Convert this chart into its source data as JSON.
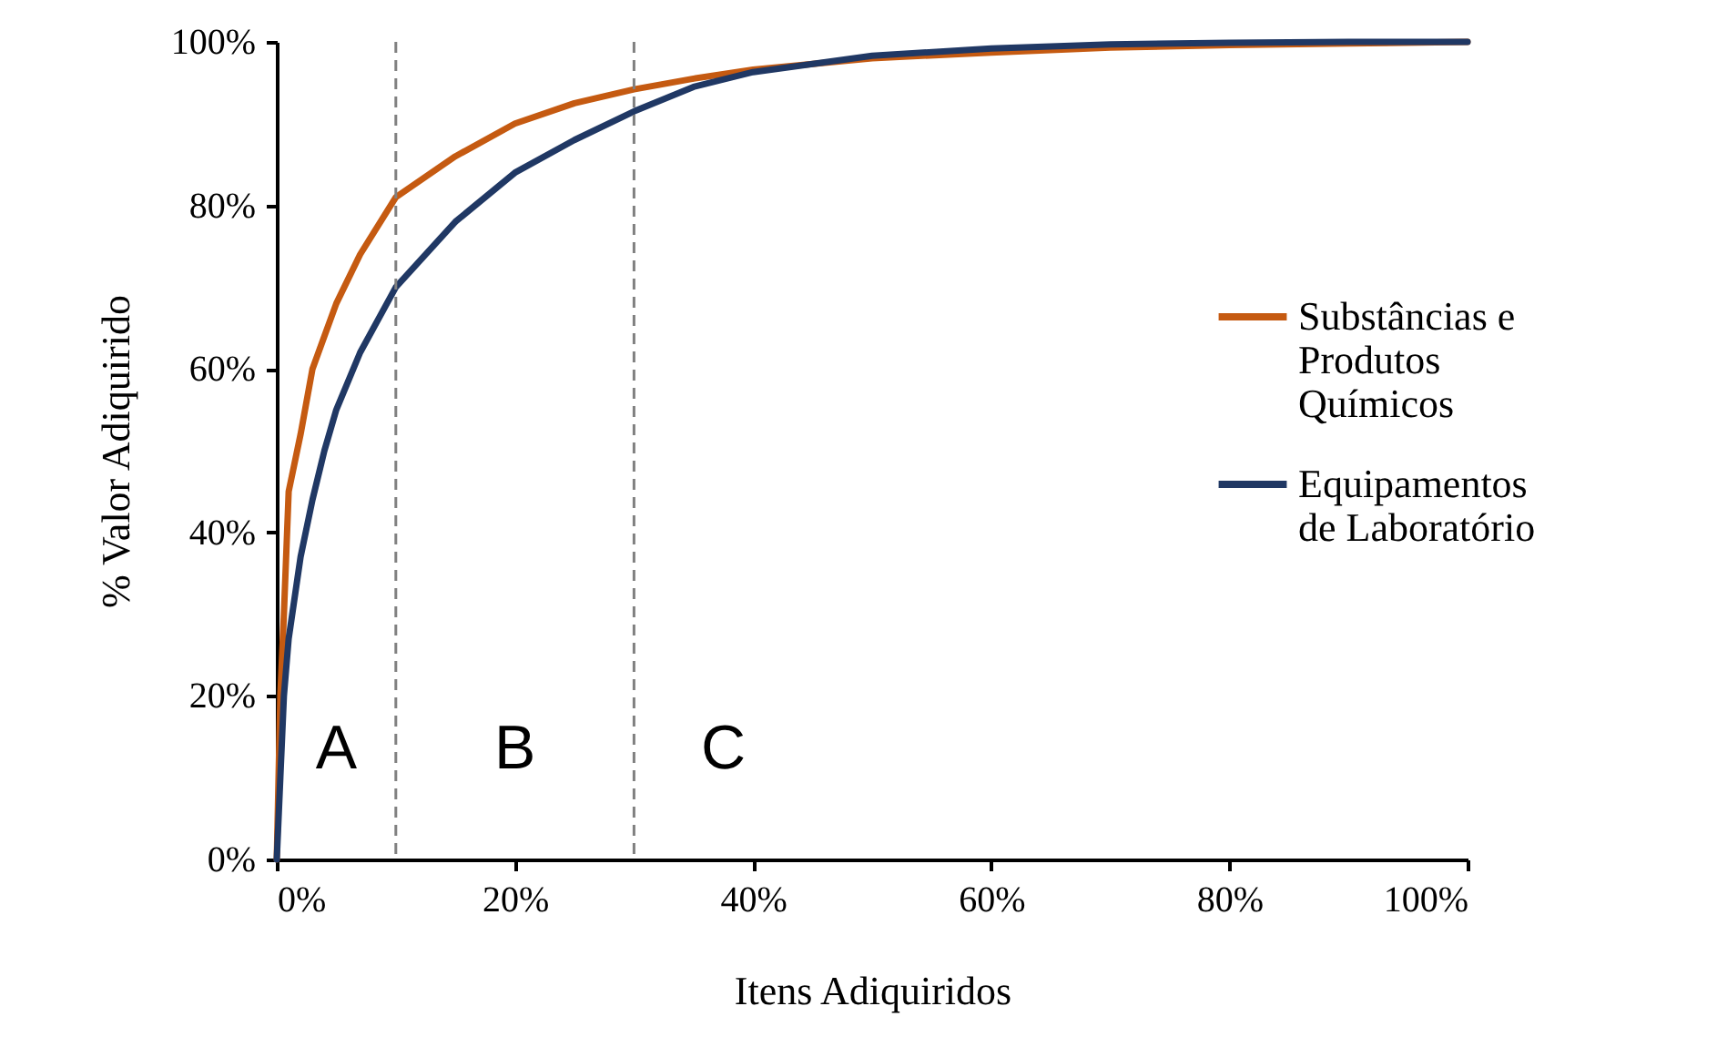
{
  "chart_data": {
    "type": "line",
    "xlabel": "Itens Adiquiridos",
    "ylabel": "% Valor Adiquirido",
    "xlim": [
      0,
      100
    ],
    "ylim": [
      0,
      100
    ],
    "xticks": [
      {
        "value": 0,
        "label": "0%"
      },
      {
        "value": 20,
        "label": "20%"
      },
      {
        "value": 40,
        "label": "40%"
      },
      {
        "value": 60,
        "label": "60%"
      },
      {
        "value": 80,
        "label": "80%"
      },
      {
        "value": 100,
        "label": "100%"
      }
    ],
    "yticks": [
      {
        "value": 0,
        "label": "0%"
      },
      {
        "value": 20,
        "label": "20%"
      },
      {
        "value": 40,
        "label": "40%"
      },
      {
        "value": 60,
        "label": "60%"
      },
      {
        "value": 80,
        "label": "80%"
      },
      {
        "value": 100,
        "label": "100%"
      }
    ],
    "x": [
      0,
      0.3,
      0.6,
      1,
      2,
      3,
      4,
      5,
      7,
      10,
      15,
      20,
      25,
      30,
      35,
      40,
      50,
      60,
      70,
      80,
      90,
      100
    ],
    "series": [
      {
        "name": "Substâncias e Produtos Químicos",
        "color": "#c55a11",
        "values": [
          0,
          20,
          30,
          45,
          52,
          60,
          64,
          68,
          74,
          81,
          86,
          90,
          92.5,
          94.2,
          95.5,
          96.6,
          98,
          98.7,
          99.3,
          99.6,
          99.8,
          100
        ]
      },
      {
        "name": "Equipamentos de Laboratório",
        "color": "#203864",
        "values": [
          0,
          10,
          20,
          27,
          37,
          44,
          50,
          55,
          62,
          70,
          78,
          84,
          88,
          91.5,
          94.5,
          96.3,
          98.3,
          99.2,
          99.7,
          99.9,
          100,
          100
        ]
      }
    ],
    "ref_lines": [
      {
        "axis": "x",
        "value": 10,
        "color": "#808080",
        "line_style": "dashed"
      },
      {
        "axis": "x",
        "value": 30,
        "color": "#808080",
        "line_style": "dashed"
      }
    ],
    "annotations": [
      "A",
      "B",
      "C"
    ],
    "grid": false,
    "legend": "right",
    "marker": "none",
    "line_style": "solid"
  }
}
